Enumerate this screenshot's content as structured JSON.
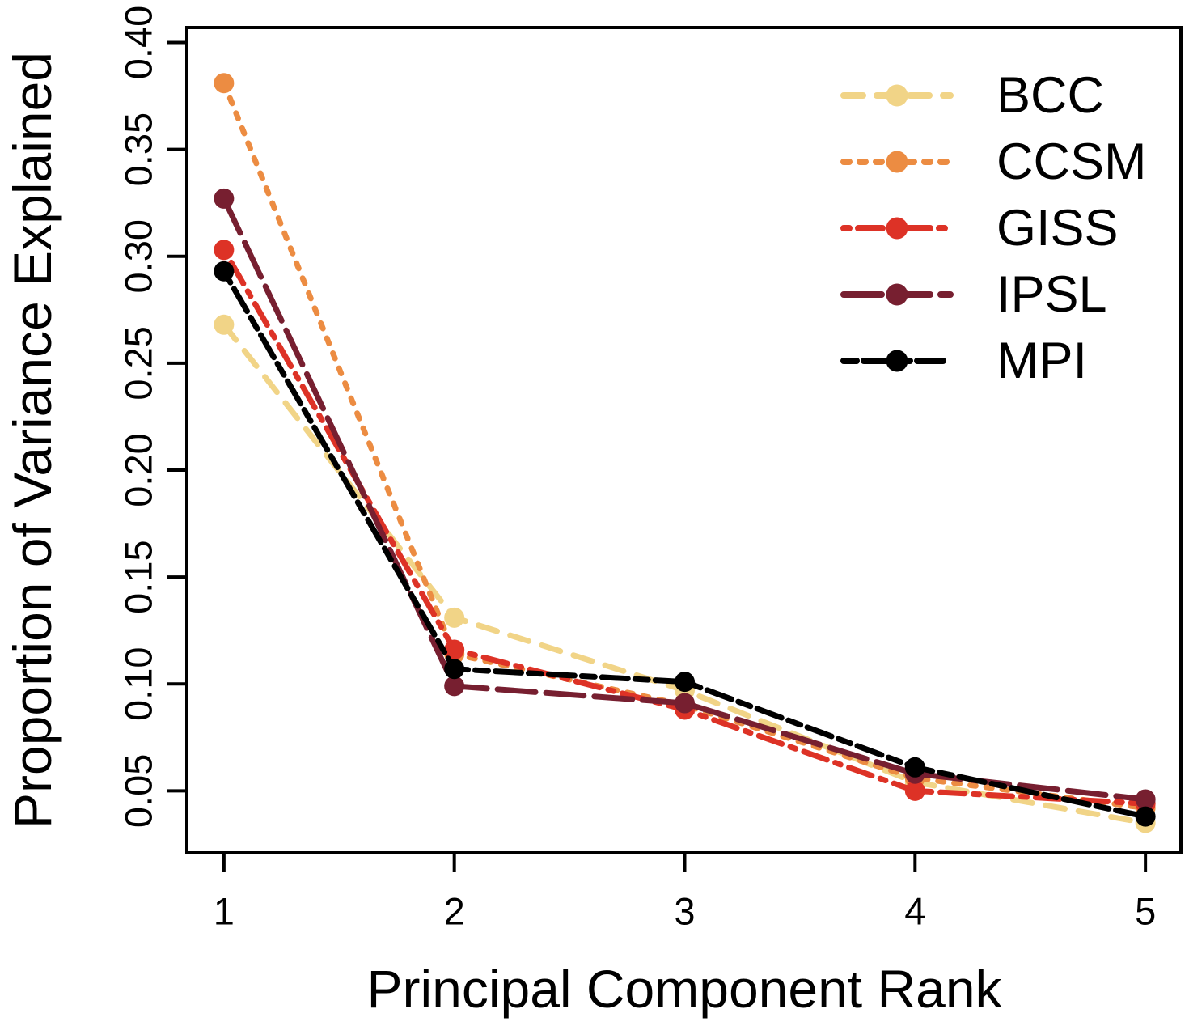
{
  "figure": {
    "background_color": "#ffffff",
    "axis_color": "#000000"
  },
  "chart_data": {
    "type": "line",
    "title": "",
    "xlabel": "Principal Component Rank",
    "ylabel": "Proportion of Variance Explained",
    "x": [
      1,
      2,
      3,
      4,
      5
    ],
    "xlim": [
      0.839,
      5.154
    ],
    "ylim": [
      0.021,
      0.407
    ],
    "xticks": [
      1,
      2,
      3,
      4,
      5
    ],
    "xtick_labels": [
      "1",
      "2",
      "3",
      "4",
      "5"
    ],
    "yticks": [
      0.05,
      0.1,
      0.15,
      0.2,
      0.25,
      0.3,
      0.35,
      0.4
    ],
    "ytick_labels": [
      "0.05",
      "0.10",
      "0.15",
      "0.20",
      "0.25",
      "0.30",
      "0.35",
      "0.40"
    ],
    "grid": false,
    "legend_position": "top-right",
    "marker": "circle",
    "series": [
      {
        "name": "BCC",
        "color": "#F1D487",
        "linestyle": "dashed",
        "dash": "24 17",
        "values": [
          0.268,
          0.131,
          0.097,
          0.054,
          0.035
        ]
      },
      {
        "name": "CCSM",
        "color": "#EC8C42",
        "linestyle": "dotted",
        "dash": "7 13",
        "values": [
          0.381,
          0.114,
          0.09,
          0.056,
          0.042
        ]
      },
      {
        "name": "GISS",
        "color": "#DD3226",
        "linestyle": "dotdash",
        "dash": "7 11 30 11",
        "values": [
          0.303,
          0.116,
          0.088,
          0.05,
          0.044
        ]
      },
      {
        "name": "IPSL",
        "color": "#771F30",
        "linestyle": "longdash",
        "dash": "47 13",
        "values": [
          0.327,
          0.099,
          0.091,
          0.058,
          0.046
        ]
      },
      {
        "name": "MPI",
        "color": "#000000",
        "linestyle": "twodash",
        "dash": "16 9 32 9",
        "values": [
          0.293,
          0.107,
          0.101,
          0.061,
          0.038
        ]
      }
    ]
  }
}
